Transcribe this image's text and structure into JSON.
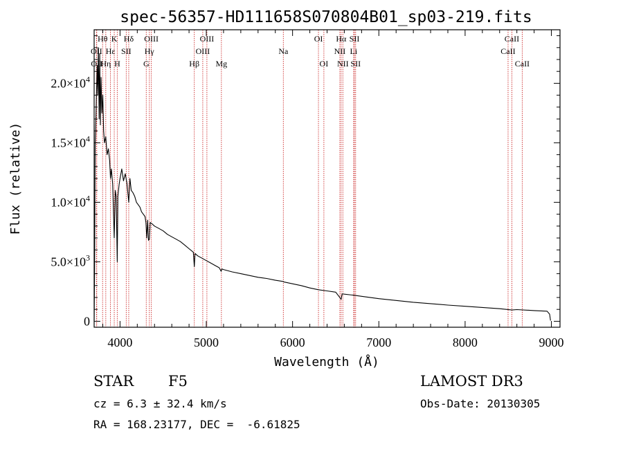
{
  "chart_data": {
    "type": "line",
    "title": "spec-56357-HD111658S070804B01_sp03-219.fits",
    "xlabel": "Wavelength (Å)",
    "ylabel": "Flux (relative)",
    "xlim": [
      3700,
      9100
    ],
    "ylim": [
      -500,
      24500
    ],
    "x_ticks": [
      {
        "value": 4000,
        "label": "4000"
      },
      {
        "value": 5000,
        "label": "5000"
      },
      {
        "value": 6000,
        "label": "6000"
      },
      {
        "value": 7000,
        "label": "7000"
      },
      {
        "value": 8000,
        "label": "8000"
      },
      {
        "value": 9000,
        "label": "9000"
      }
    ],
    "y_ticks": [
      {
        "value": 0,
        "mant": "0",
        "exp": ""
      },
      {
        "value": 5000,
        "mant": "5.0×10",
        "exp": "3"
      },
      {
        "value": 10000,
        "mant": "1.0×10",
        "exp": "4"
      },
      {
        "value": 15000,
        "mant": "1.5×10",
        "exp": "4"
      },
      {
        "value": 20000,
        "mant": "2.0×10",
        "exp": "4"
      }
    ],
    "series": [
      {
        "name": "spectrum",
        "x": [
          3700,
          3705,
          3712,
          3720,
          3728,
          3735,
          3742,
          3750,
          3758,
          3765,
          3772,
          3780,
          3790,
          3800,
          3810,
          3820,
          3835,
          3850,
          3865,
          3880,
          3889,
          3900,
          3915,
          3933,
          3945,
          3955,
          3968,
          3975,
          3990,
          4000,
          4020,
          4040,
          4060,
          4080,
          4101,
          4115,
          4130,
          4150,
          4170,
          4190,
          4210,
          4230,
          4250,
          4270,
          4290,
          4300,
          4310,
          4320,
          4330,
          4340,
          4350,
          4370,
          4400,
          4450,
          4500,
          4550,
          4600,
          4650,
          4700,
          4750,
          4800,
          4850,
          4861,
          4870,
          4900,
          4950,
          5000,
          5050,
          5100,
          5150,
          5172,
          5180,
          5200,
          5300,
          5400,
          5500,
          5600,
          5700,
          5800,
          5890,
          5900,
          6000,
          6100,
          6200,
          6300,
          6400,
          6500,
          6563,
          6575,
          6700,
          6800,
          7000,
          7200,
          7400,
          7600,
          7800,
          8000,
          8200,
          8400,
          8542,
          8600,
          8800,
          8950,
          8980,
          8990
        ],
        "values": [
          0,
          4000,
          15000,
          17000,
          19500,
          21500,
          19000,
          23000,
          17000,
          22500,
          16500,
          20500,
          17500,
          19000,
          16000,
          15000,
          15500,
          14000,
          14500,
          13500,
          12000,
          12800,
          11500,
          7000,
          11000,
          10500,
          5000,
          10500,
          11500,
          12000,
          12800,
          11800,
          12400,
          11600,
          10000,
          12000,
          11000,
          10800,
          10500,
          10000,
          9800,
          9600,
          9200,
          9000,
          8800,
          8300,
          7000,
          8500,
          6800,
          6900,
          8300,
          8200,
          8000,
          7800,
          7600,
          7300,
          7100,
          6900,
          6700,
          6400,
          6100,
          5800,
          4600,
          5700,
          5500,
          5300,
          5100,
          4900,
          4700,
          4500,
          4200,
          4400,
          4350,
          4150,
          4000,
          3850,
          3700,
          3600,
          3450,
          3350,
          3300,
          3150,
          3000,
          2800,
          2650,
          2550,
          2450,
          1850,
          2300,
          2200,
          2100,
          1900,
          1750,
          1600,
          1480,
          1360,
          1260,
          1160,
          1060,
          950,
          980,
          900,
          850,
          600,
          60
        ]
      }
    ],
    "lines": [
      {
        "label": "OII",
        "x": 3727,
        "row": 1
      },
      {
        "label": "OII",
        "x": 3730,
        "row": 2
      },
      {
        "label": "Hθ",
        "x": 3798,
        "row": 0
      },
      {
        "label": "Hη",
        "x": 3835,
        "row": 2
      },
      {
        "label": "Hε",
        "x": 3889,
        "row": 1
      },
      {
        "label": "K",
        "x": 3933,
        "row": 0
      },
      {
        "label": "H",
        "x": 3968,
        "row": 2
      },
      {
        "label": "Hδ",
        "x": 4101,
        "row": 0
      },
      {
        "label": "SII",
        "x": 4072,
        "row": 1
      },
      {
        "label": "G",
        "x": 4304,
        "row": 2
      },
      {
        "label": "OIII",
        "x": 4363,
        "row": 0
      },
      {
        "label": "Hγ",
        "x": 4340,
        "row": 1
      },
      {
        "label": "Hβ",
        "x": 4861,
        "row": 2
      },
      {
        "label": "OIII",
        "x": 5007,
        "row": 0
      },
      {
        "label": "OIII",
        "x": 4959,
        "row": 1
      },
      {
        "label": "Mg",
        "x": 5175,
        "row": 2
      },
      {
        "label": "Na",
        "x": 5893,
        "row": 1
      },
      {
        "label": "OI",
        "x": 6300,
        "row": 0
      },
      {
        "label": "OI",
        "x": 6363,
        "row": 2
      },
      {
        "label": "Hα",
        "x": 6563,
        "row": 0
      },
      {
        "label": "NII",
        "x": 6548,
        "row": 1
      },
      {
        "label": "NII",
        "x": 6583,
        "row": 2
      },
      {
        "label": "SII",
        "x": 6717,
        "row": 0
      },
      {
        "label": "Li",
        "x": 6708,
        "row": 1
      },
      {
        "label": "SII",
        "x": 6731,
        "row": 2
      },
      {
        "label": "CaII",
        "x": 8542,
        "row": 0
      },
      {
        "label": "CaII",
        "x": 8498,
        "row": 1
      },
      {
        "label": "CaII",
        "x": 8662,
        "row": 2
      }
    ]
  },
  "info": {
    "class_label": "STAR",
    "subclass": "F5",
    "survey": "LAMOST DR3",
    "cz": "cz = 6.3 ± 32.4 km/s",
    "obs_date": "Obs-Date: 20130305",
    "radec": "RA = 168.23177, DEC =  -6.61825"
  },
  "colors": {
    "line_marker": "#cc2a2a",
    "axis": "#000000",
    "background": "#ffffff"
  }
}
